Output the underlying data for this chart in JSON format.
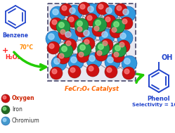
{
  "bg_color": "#ffffff",
  "benzene_label": "Benzene",
  "benzene_label_color": "#2244cc",
  "plus_text": "+",
  "plus_color": "#ff2222",
  "h2o2_text": "H₂O₂",
  "h2o2_color": "#ff2222",
  "temp_text": "70°C",
  "temp_color": "#ff8800",
  "catalyst_label": "FeCr₂O₄ Catalyst",
  "catalyst_color": "#ff6600",
  "phenol_label": "Phenol",
  "phenol_label_color": "#2244cc",
  "selectivity_text": "Selectivity = 100%",
  "selectivity_color": "#2244cc",
  "legend_oxygen_color": "#cc1111",
  "legend_iron_color": "#226622",
  "legend_chromium_color": "#4499cc",
  "legend_oxygen_label": "Oxygen",
  "legend_iron_label": "Iron",
  "legend_chromium_label": "Chromium",
  "legend_oxygen_label_color": "#cc2200",
  "legend_iron_label_color": "#333333",
  "legend_chromium_label_color": "#333333",
  "arrow1_color": "#22cc00",
  "arrow2_color": "#22cc00",
  "box_color": "#555577",
  "fig_width": 2.49,
  "fig_height": 1.89,
  "dpi": 100
}
